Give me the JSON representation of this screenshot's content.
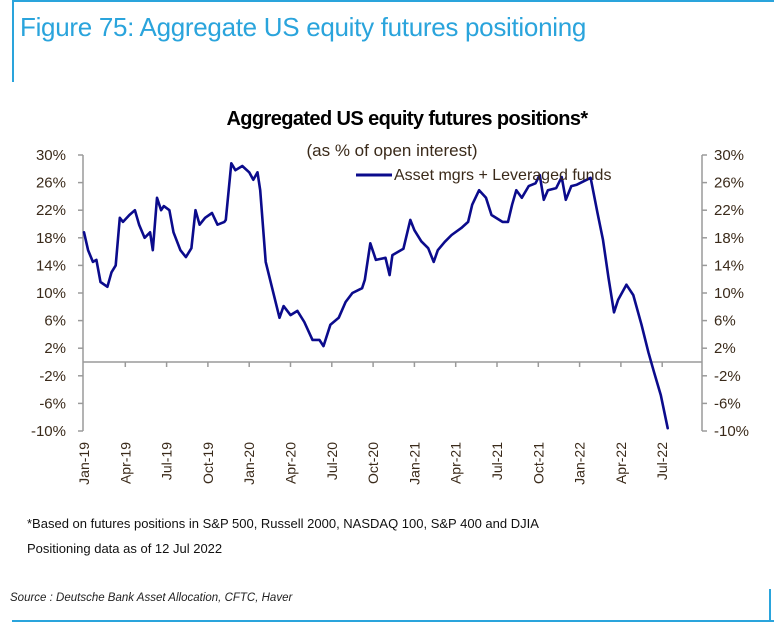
{
  "figure": {
    "title": "Figure 75: Aggregate US equity futures positioning",
    "accent_color": "#2aa4dc"
  },
  "footnotes": {
    "note": "*Based on futures positions in S&P 500, Russell 2000, NASDAQ 100, S&P 400 and DJIA",
    "as_of": "Positioning data as of 12 Jul 2022",
    "source": "Source : Deutsche Bank Asset Allocation, CFTC, Haver"
  },
  "chart_data": {
    "type": "line",
    "title": "Aggregated US equity futures positions*",
    "subtitle": "(as % of open interest)",
    "xlabel": "",
    "ylabel": "",
    "ylim": [
      -10,
      30
    ],
    "yticks": [
      "30%",
      "26%",
      "22%",
      "18%",
      "14%",
      "10%",
      "6%",
      "2%",
      "-2%",
      "-6%",
      "-10%"
    ],
    "ytick_values": [
      30,
      26,
      22,
      18,
      14,
      10,
      6,
      2,
      -2,
      -6,
      -10
    ],
    "x_unit": "months since Jan-19",
    "xlim": [
      0,
      43
    ],
    "xticks": [
      "Jan-19",
      "Apr-19",
      "Jul-19",
      "Oct-19",
      "Jan-20",
      "Apr-20",
      "Jul-20",
      "Oct-20",
      "Jan-21",
      "Apr-21",
      "Jul-21",
      "Oct-21",
      "Jan-22",
      "Apr-22",
      "Jul-22"
    ],
    "xtick_values": [
      0,
      3,
      6,
      9,
      12,
      15,
      18,
      21,
      24,
      27,
      30,
      33,
      36,
      39,
      42
    ],
    "grid": false,
    "legend_position": "top-right",
    "series": [
      {
        "name": "Asset mgrs + Leveraged funds",
        "color": "#0b0b8c",
        "x": [
          0,
          0.3,
          0.65,
          0.9,
          1.2,
          1.7,
          2.0,
          2.3,
          2.6,
          2.83,
          3.3,
          3.7,
          4.0,
          4.4,
          4.8,
          5.0,
          5.3,
          5.6,
          5.8,
          6.2,
          6.5,
          7.0,
          7.4,
          7.8,
          8.1,
          8.4,
          8.8,
          9.3,
          9.7,
          10.2,
          10.3,
          10.7,
          11.0,
          11.5,
          12.0,
          12.3,
          12.6,
          12.8,
          13.2,
          14.2,
          14.5,
          15.0,
          15.5,
          16.0,
          16.6,
          17.1,
          17.4,
          17.9,
          18.5,
          19.0,
          19.5,
          20.2,
          20.4,
          20.8,
          21.2,
          21.9,
          22.2,
          22.4,
          23.2,
          23.7,
          24.0,
          24.5,
          25.0,
          25.4,
          25.7,
          26.2,
          26.7,
          27.4,
          27.9,
          28.2,
          28.7,
          29.2,
          29.6,
          30.4,
          30.8,
          31.1,
          31.4,
          31.8,
          32.3,
          32.8,
          33.1,
          33.4,
          33.7,
          34.3,
          34.7,
          35.0,
          35.4,
          35.8,
          36.8,
          37.3,
          37.7,
          38.1,
          38.5,
          38.8,
          39.4,
          39.9,
          40.5,
          41.0,
          41.4,
          41.9,
          42.4
        ],
        "values": [
          18.8,
          16.2,
          14.5,
          14.8,
          11.6,
          10.9,
          13.0,
          14.0,
          20.9,
          20.3,
          21.3,
          22.0,
          19.9,
          18.0,
          18.8,
          16.2,
          23.8,
          22.0,
          22.6,
          22.0,
          18.8,
          16.2,
          15.2,
          16.5,
          22.0,
          19.9,
          20.9,
          21.6,
          19.9,
          20.3,
          20.6,
          28.8,
          27.8,
          28.4,
          27.5,
          26.4,
          27.5,
          24.9,
          14.5,
          6.4,
          8.1,
          6.8,
          7.4,
          5.8,
          3.2,
          3.2,
          2.3,
          5.4,
          6.4,
          8.7,
          10.0,
          10.7,
          11.9,
          17.2,
          14.8,
          15.1,
          12.6,
          15.5,
          16.4,
          20.6,
          19.1,
          17.5,
          16.5,
          14.5,
          16.2,
          17.4,
          18.4,
          19.4,
          20.3,
          22.8,
          24.9,
          23.8,
          21.3,
          20.3,
          20.3,
          22.8,
          24.9,
          23.8,
          25.5,
          25.9,
          27.1,
          23.5,
          24.9,
          25.2,
          26.8,
          23.5,
          25.5,
          25.7,
          26.7,
          21.6,
          17.7,
          12.2,
          7.2,
          9.0,
          11.2,
          9.7,
          5.4,
          1.4,
          -1.4,
          -4.8,
          -9.6
        ]
      }
    ]
  }
}
